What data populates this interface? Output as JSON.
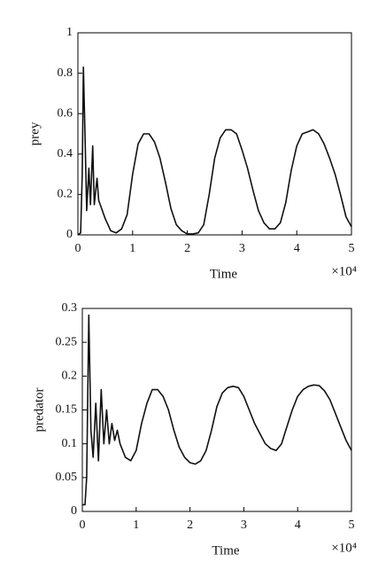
{
  "chart_data": [
    {
      "type": "line",
      "ylabel": "prey",
      "xlabel": "Time",
      "x_scale_label": "×10⁴",
      "x": [
        0,
        0.05,
        0.08,
        0.1,
        0.13,
        0.16,
        0.2,
        0.23,
        0.27,
        0.3,
        0.35,
        0.38,
        0.42,
        0.5,
        0.6,
        0.7,
        0.8,
        0.9,
        1.0,
        1.1,
        1.2,
        1.3,
        1.4,
        1.5,
        1.6,
        1.7,
        1.8,
        1.9,
        2.0,
        2.1,
        2.2,
        2.3,
        2.4,
        2.5,
        2.6,
        2.7,
        2.8,
        2.9,
        3.0,
        3.1,
        3.2,
        3.3,
        3.4,
        3.5,
        3.6,
        3.7,
        3.8,
        3.9,
        4.0,
        4.1,
        4.2,
        4.3,
        4.4,
        4.5,
        4.6,
        4.7,
        4.8,
        4.9,
        5.0
      ],
      "values": [
        0,
        0.01,
        0.3,
        0.83,
        0.5,
        0.12,
        0.33,
        0.15,
        0.44,
        0.15,
        0.28,
        0.17,
        0.14,
        0.08,
        0.02,
        0.01,
        0.03,
        0.1,
        0.3,
        0.45,
        0.5,
        0.5,
        0.46,
        0.38,
        0.26,
        0.13,
        0.05,
        0.02,
        0.005,
        0.005,
        0.01,
        0.05,
        0.2,
        0.38,
        0.48,
        0.52,
        0.52,
        0.5,
        0.42,
        0.33,
        0.22,
        0.12,
        0.06,
        0.03,
        0.03,
        0.06,
        0.16,
        0.32,
        0.44,
        0.5,
        0.51,
        0.52,
        0.5,
        0.45,
        0.38,
        0.3,
        0.2,
        0.09,
        0.04
      ],
      "color": "#111111",
      "xlim": [
        0,
        5
      ],
      "xticks": [
        0,
        1,
        2,
        3,
        4,
        5
      ],
      "ylim": [
        0,
        1
      ],
      "yticks": [
        0,
        0.2,
        0.4,
        0.6,
        0.8,
        1
      ]
    },
    {
      "type": "line",
      "ylabel": "predator",
      "xlabel": "Time",
      "x_scale_label": "×10⁴",
      "x": [
        0,
        0.05,
        0.08,
        0.12,
        0.16,
        0.2,
        0.25,
        0.3,
        0.35,
        0.4,
        0.45,
        0.5,
        0.55,
        0.6,
        0.65,
        0.7,
        0.8,
        0.9,
        1.0,
        1.1,
        1.2,
        1.3,
        1.4,
        1.5,
        1.6,
        1.7,
        1.8,
        1.9,
        2.0,
        2.1,
        2.2,
        2.3,
        2.4,
        2.5,
        2.6,
        2.7,
        2.8,
        2.9,
        3.0,
        3.1,
        3.2,
        3.3,
        3.4,
        3.5,
        3.6,
        3.7,
        3.8,
        3.9,
        4.0,
        4.1,
        4.2,
        4.3,
        4.4,
        4.5,
        4.6,
        4.7,
        4.8,
        4.9,
        5.0
      ],
      "values": [
        0.01,
        0.01,
        0.05,
        0.29,
        0.12,
        0.08,
        0.16,
        0.075,
        0.18,
        0.1,
        0.15,
        0.1,
        0.13,
        0.105,
        0.12,
        0.1,
        0.08,
        0.075,
        0.09,
        0.13,
        0.16,
        0.18,
        0.18,
        0.17,
        0.15,
        0.12,
        0.095,
        0.08,
        0.072,
        0.07,
        0.075,
        0.09,
        0.12,
        0.155,
        0.175,
        0.183,
        0.185,
        0.183,
        0.17,
        0.15,
        0.13,
        0.115,
        0.1,
        0.093,
        0.09,
        0.1,
        0.125,
        0.15,
        0.17,
        0.18,
        0.185,
        0.187,
        0.186,
        0.178,
        0.165,
        0.145,
        0.125,
        0.105,
        0.09
      ],
      "color": "#111111",
      "xlim": [
        0,
        5
      ],
      "xticks": [
        0,
        1,
        2,
        3,
        4,
        5
      ],
      "ylim": [
        0,
        0.3
      ],
      "yticks": [
        0,
        0.05,
        0.1,
        0.15,
        0.2,
        0.25,
        0.3
      ]
    }
  ]
}
